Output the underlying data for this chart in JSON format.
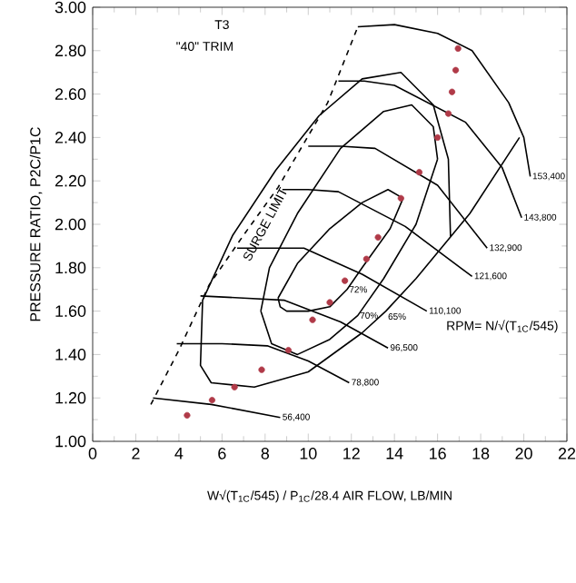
{
  "chart_data": {
    "type": "line",
    "xlabel": "W√(T$_{1C}$/545) / P$_{1C}$/28.4  AIR FLOW, LB/MIN",
    "ylabel": "PRESSURE RATIO, P2C/P1C",
    "xlim": [
      0,
      22
    ],
    "ylim": [
      1.0,
      3.0
    ],
    "xticks": [
      0,
      2,
      4,
      6,
      8,
      10,
      12,
      14,
      16,
      18,
      20,
      22
    ],
    "yticks": [
      {
        "value": 1.0,
        "label": "1.00"
      },
      {
        "value": 1.2,
        "label": "1.20"
      },
      {
        "value": 1.4,
        "label": "1.40"
      },
      {
        "value": 1.6,
        "label": "1.60"
      },
      {
        "value": 1.8,
        "label": "1.80"
      },
      {
        "value": 2.0,
        "label": "2.00"
      },
      {
        "value": 2.2,
        "label": "2.20"
      },
      {
        "value": 2.4,
        "label": "2.40"
      },
      {
        "value": 2.6,
        "label": "2.60"
      },
      {
        "value": 2.8,
        "label": "2.80"
      },
      {
        "value": 3.0,
        "label": "3.00"
      }
    ],
    "grid": false,
    "series": [
      {
        "type": "line",
        "line_style": "dashed",
        "color": "#000000",
        "x": [
          2.7,
          4.0,
          5.4,
          7.0,
          8.6,
          10.9,
          12.3
        ],
        "values": [
          1.17,
          1.42,
          1.72,
          1.95,
          2.17,
          2.56,
          2.91
        ]
      },
      {
        "type": "line",
        "name": "56,400",
        "color": "#000000",
        "x": [
          2.8,
          5.5,
          8.7
        ],
        "values": [
          1.2,
          1.17,
          1.11
        ]
      },
      {
        "type": "line",
        "name": "78,800",
        "color": "#000000",
        "x": [
          3.9,
          6.0,
          8.1,
          10.0,
          11.9
        ],
        "values": [
          1.45,
          1.45,
          1.44,
          1.37,
          1.27
        ]
      },
      {
        "type": "line",
        "name": "96,500",
        "color": "#000000",
        "x": [
          5.0,
          7.0,
          8.9,
          11.5,
          13.7
        ],
        "values": [
          1.67,
          1.66,
          1.65,
          1.55,
          1.43
        ]
      },
      {
        "type": "line",
        "name": "110,100",
        "color": "#000000",
        "x": [
          6.7,
          8.2,
          9.8,
          12.5,
          15.5
        ],
        "values": [
          1.89,
          1.89,
          1.89,
          1.77,
          1.6
        ]
      },
      {
        "type": "line",
        "name": "121,600",
        "color": "#000000",
        "x": [
          8.8,
          10.0,
          11.4,
          14.5,
          17.6
        ],
        "values": [
          2.16,
          2.16,
          2.15,
          1.99,
          1.76
        ]
      },
      {
        "type": "line",
        "name": "132,900",
        "color": "#000000",
        "x": [
          10.0,
          11.5,
          13.1,
          16.0,
          18.3
        ],
        "values": [
          2.36,
          2.36,
          2.35,
          2.18,
          1.89
        ]
      },
      {
        "type": "line",
        "name": "143,800",
        "color": "#000000",
        "x": [
          11.4,
          12.6,
          14.0,
          17.3,
          19.0,
          19.9
        ],
        "values": [
          2.66,
          2.66,
          2.64,
          2.47,
          2.26,
          2.03
        ]
      },
      {
        "type": "line",
        "name": "153,400",
        "color": "#000000",
        "x": [
          12.3,
          14.0,
          16.0,
          17.6,
          19.3,
          20.0,
          20.3
        ],
        "values": [
          2.91,
          2.92,
          2.88,
          2.8,
          2.56,
          2.4,
          2.22
        ]
      },
      {
        "type": "line",
        "name": "72%",
        "color": "#000000",
        "x": [
          8.6,
          8.7,
          9.0,
          10.0,
          11.0,
          11.8,
          12.5,
          13.8,
          14.4
        ],
        "values": [
          1.66,
          1.62,
          1.6,
          1.6,
          1.62,
          1.7,
          1.8,
          1.98,
          2.12
        ]
      },
      {
        "type": "line",
        "color": "#000000",
        "x": [
          8.6,
          9.5,
          11.0,
          12.5,
          13.7,
          14.4
        ],
        "values": [
          1.66,
          1.82,
          1.98,
          2.1,
          2.16,
          2.12
        ]
      },
      {
        "type": "line",
        "name": "70%",
        "color": "#000000",
        "x": [
          7.8,
          8.3,
          9.5,
          11.0,
          12.3,
          13.5,
          15.0,
          16.0
        ],
        "values": [
          1.6,
          1.45,
          1.4,
          1.47,
          1.58,
          1.75,
          2.0,
          2.3
        ]
      },
      {
        "type": "line",
        "color": "#000000",
        "x": [
          7.8,
          8.2,
          9.5,
          11.5,
          13.5,
          14.8,
          15.8,
          16.0
        ],
        "values": [
          1.6,
          1.8,
          2.05,
          2.35,
          2.52,
          2.55,
          2.45,
          2.3
        ]
      },
      {
        "type": "line",
        "name": "65%",
        "color": "#000000",
        "x": [
          16.6,
          16.5,
          15.8,
          14.3,
          12.5,
          10.5,
          8.5,
          6.5,
          5.1,
          5.0,
          5.5,
          7.5,
          10.0,
          12.5,
          13.6,
          15.0,
          17.5,
          19.8
        ],
        "values": [
          1.94,
          2.3,
          2.55,
          2.7,
          2.67,
          2.5,
          2.25,
          1.95,
          1.65,
          1.35,
          1.27,
          1.25,
          1.32,
          1.5,
          1.6,
          1.75,
          2.05,
          2.4
        ]
      },
      {
        "type": "scatter",
        "marker": "circle",
        "color": "#b03a48",
        "x": [
          16.95,
          16.84,
          16.67,
          16.5,
          16.0,
          15.15,
          14.3,
          13.24,
          12.7,
          11.7,
          11.0,
          10.2,
          9.08,
          7.84,
          6.58,
          5.54,
          4.38
        ],
        "values": [
          2.81,
          2.71,
          2.61,
          2.51,
          2.4,
          2.24,
          2.12,
          1.94,
          1.84,
          1.74,
          1.64,
          1.56,
          1.42,
          1.33,
          1.25,
          1.19,
          1.12
        ]
      }
    ],
    "annotations": [
      "T3",
      "\"40\" TRIM",
      "RPM= N/√(T$_{1C}$/545)",
      "SURGE LIMIT"
    ]
  }
}
